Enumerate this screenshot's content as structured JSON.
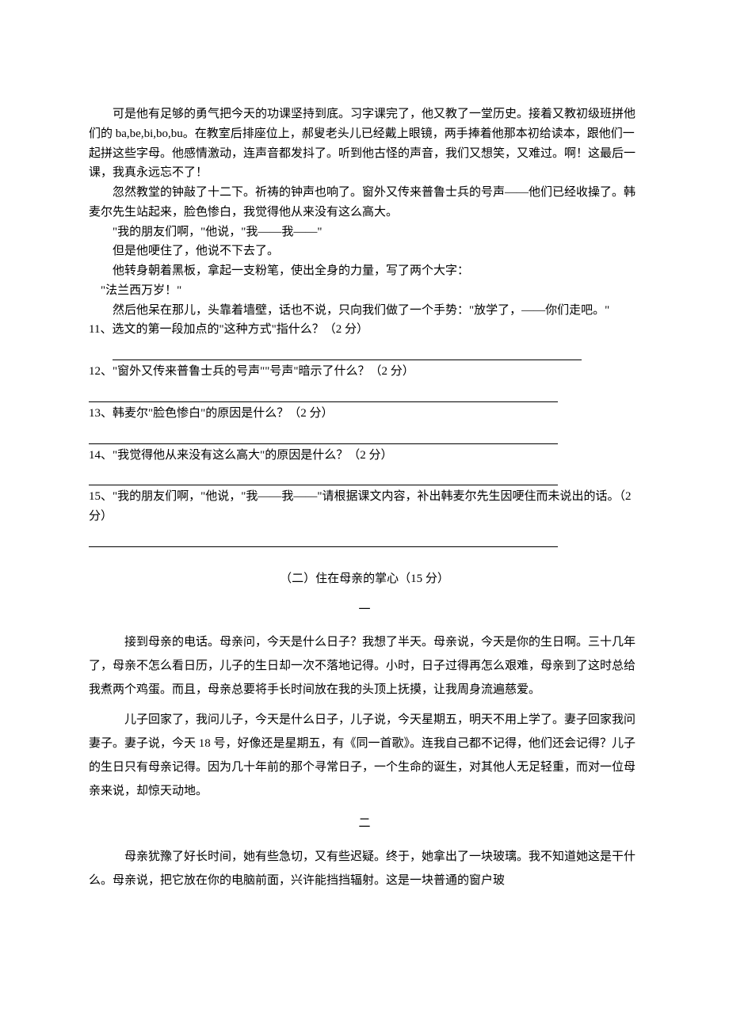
{
  "excerpt": {
    "p1": "可是他有足够的勇气把今天的功课坚持到底。习字课完了，他又教了一堂历史。接着又教初级班拼他们的 ba,be,bi,bo,bu。在教室后排座位上，郝叟老头儿已经戴上眼镜，两手捧着他那本初给读本，跟他们一起拼这些字母。他感情激动，连声音都发抖了。听到他古怪的声音，我们又想笑，又难过。啊！这最后一课，我真永远忘不了！",
    "p2": "忽然教堂的钟敲了十二下。祈祷的钟声也响了。窗外又传来普鲁士兵的号声——他们已经收操了。韩麦尔先生站起来，脸色惨白，我觉得他从来没有这么高大。",
    "p3": "\"我的朋友们啊，\"他说，\"我——我——\"",
    "p4": "但是他哽住了，他说不下去了。",
    "p5": "他转身朝着黑板，拿起一支粉笔，使出全身的力量，写了两个大字：",
    "p6": "\"法兰西万岁！\"",
    "p7": "然后他呆在那儿，头靠着墙壁，话也不说，只向我们做了一个手势：\"放学了，——你们走吧。\""
  },
  "questions": {
    "q11": "11、选文的第一段加点的\"这种方式\"指什么？（2 分）",
    "q12": "12、\"窗外又传来普鲁士兵的号声\"\"号声\"暗示了什么？（2 分）",
    "q13": "13、韩麦尔\"脸色惨白\"的原因是什么？（2 分）",
    "q14": "14、\"我觉得他从来没有这么高大\"的原因是什么？（2 分）",
    "q15": "15、\"我的朋友们啊，\"他说，\"我——我——\"请根据课文内容，补出韩麦尔先生因哽住而未说出的话。（2 分）"
  },
  "section2": {
    "title": "（二）住在母亲的掌心（15 分）",
    "sub1": "一",
    "p1": "接到母亲的电话。母亲问，今天是什么日子？我想了半天。母亲说，今天是你的生日啊。三十几年了，母亲不怎么看日历，儿子的生日却一次不落地记得。小时，日子过得再怎么艰难，母亲到了这时总给我煮两个鸡蛋。而且，母亲总要将手长时间放在我的头顶上抚摸，让我周身流遍慈爱。",
    "p2": "儿子回家了，我问儿子，今天是什么日子，儿子说，今天星期五，明天不用上学了。妻子回家我问妻子。妻子说，今天 18 号，好像还是星期五，有《同一首歌》。连我自己都不记得，他们还会记得？儿子的生日只有母亲记得。因为几十年前的那个寻常日子，一个生命的诞生，对其他人无足轻重，而对一位母亲来说，却惊天动地。",
    "sub2": "二",
    "p3": "母亲犹豫了好长时间，她有些急切，又有些迟疑。终于，她拿出了一块玻璃。我不知道她这是干什么。母亲说，把它放在你的电脑前面，兴许能挡挡辐射。这是一块普通的窗户玻"
  }
}
